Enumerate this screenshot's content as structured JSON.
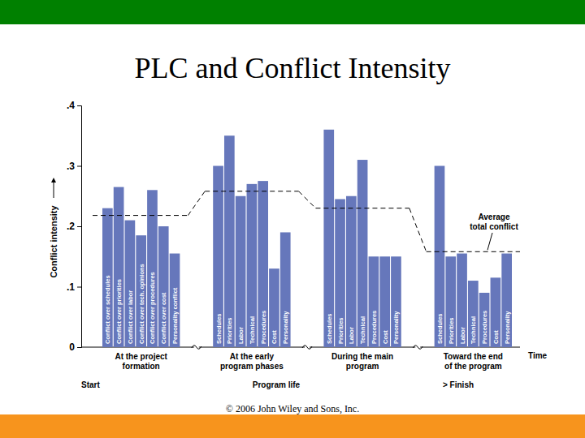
{
  "chart_data": {
    "type": "bar",
    "title": "PLC and Conflict Intensity",
    "y_label": "Conflict intensity",
    "x_label": "Time",
    "ylim": [
      0,
      0.4
    ],
    "yticks": [
      0,
      {
        "value": 0.1,
        "label": ".1"
      },
      {
        "value": 0.2,
        "label": ".2"
      },
      {
        "value": 0.3,
        "label": ".3"
      },
      {
        "value": 0.4,
        "label": ".4"
      }
    ],
    "grid": false,
    "color": "#6677bb",
    "phases": [
      {
        "label": [
          "At the project",
          "formation"
        ],
        "categories": [
          "Conflict over schedules",
          "Conflict over priorities",
          "Conflict over labor",
          "Conflict over tech. opinions",
          "Conflict over procedures",
          "Conflict over cost",
          "Personality conflict"
        ],
        "values": [
          0.23,
          0.265,
          0.21,
          0.185,
          0.26,
          0.2,
          0.155
        ]
      },
      {
        "label": [
          "At the early",
          "program phases"
        ],
        "categories": [
          "Schedules",
          "Priorities",
          "Labor",
          "Technical",
          "Procedures",
          "Cost",
          "Personality"
        ],
        "values": [
          0.3,
          0.35,
          0.25,
          0.27,
          0.275,
          0.13,
          0.19
        ]
      },
      {
        "label": [
          "During the main",
          "program"
        ],
        "categories": [
          "Schedules",
          "Priorities",
          "Labor",
          "Technical",
          "Procedures",
          "Cost",
          "Personality"
        ],
        "values": [
          0.36,
          0.245,
          0.25,
          0.31,
          0.15,
          0.15,
          0.15
        ]
      },
      {
        "label": [
          "Toward the end",
          "of the program"
        ],
        "categories": [
          "Schedules",
          "Priorities",
          "Labor",
          "Technical",
          "Procedures",
          "Cost",
          "Personality"
        ],
        "values": [
          0.3,
          0.15,
          0.155,
          0.11,
          0.09,
          0.115,
          0.155
        ]
      }
    ],
    "average": {
      "label": [
        "Average",
        "total conflict"
      ],
      "values": [
        0.218,
        0.258,
        0.23,
        0.158
      ],
      "line_style": "dashed",
      "color": "#000000"
    },
    "timeline": [
      "Start",
      "Program life",
      "> Finish"
    ],
    "footer": "© 2006 John Wiley and Sons, Inc."
  }
}
